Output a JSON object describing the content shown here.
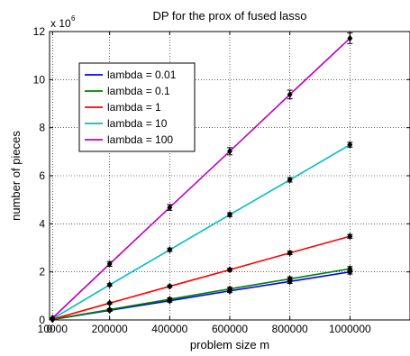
{
  "chart_data": {
    "type": "line",
    "title": "DP for the prox of fused lasso",
    "xlabel": "problem size m",
    "ylabel": "number of pieces",
    "y_multiplier_label": "x 10",
    "y_multiplier_exponent": "6",
    "x": [
      10000,
      200000,
      400000,
      600000,
      800000,
      1000000
    ],
    "x_tick_values": [
      0,
      10000,
      200000,
      400000,
      600000,
      800000,
      1000000
    ],
    "x_tick_labels": [
      "0",
      "10000",
      "200000",
      "400000",
      "600000",
      "800000",
      "1000000"
    ],
    "y_tick_values": [
      0,
      2,
      4,
      6,
      8,
      10,
      12
    ],
    "y_tick_labels": [
      "0",
      "2",
      "4",
      "6",
      "8",
      "10",
      "12"
    ],
    "xlim": [
      0,
      1200000
    ],
    "ylim": [
      0,
      12
    ],
    "grid": true,
    "legend_position": "top-left",
    "marker": "diamond",
    "error_bars": true,
    "series": [
      {
        "name": "lambda = 0.01",
        "color": "#0000ff",
        "values": [
          0.02,
          0.4,
          0.8,
          1.21,
          1.6,
          2.0
        ],
        "errors": [
          0,
          0.04,
          0.06,
          0.07,
          0.08,
          0.09
        ]
      },
      {
        "name": "lambda = 0.1",
        "color": "#008000",
        "values": [
          0.02,
          0.43,
          0.86,
          1.29,
          1.71,
          2.13
        ],
        "errors": [
          0,
          0.04,
          0.06,
          0.07,
          0.08,
          0.09
        ]
      },
      {
        "name": "lambda = 1",
        "color": "#ff0000",
        "values": [
          0.03,
          0.7,
          1.4,
          2.09,
          2.79,
          3.48
        ],
        "errors": [
          0,
          0.04,
          0.05,
          0.06,
          0.07,
          0.08
        ]
      },
      {
        "name": "lambda = 10",
        "color": "#00bfbf",
        "values": [
          0.05,
          1.46,
          2.92,
          4.38,
          5.83,
          7.29
        ],
        "errors": [
          0,
          0.05,
          0.07,
          0.08,
          0.09,
          0.1
        ]
      },
      {
        "name": "lambda = 100",
        "color": "#bf00bf",
        "values": [
          0.08,
          2.33,
          4.68,
          7.02,
          9.38,
          11.72
        ],
        "errors": [
          0,
          0.1,
          0.12,
          0.15,
          0.18,
          0.22
        ]
      }
    ]
  }
}
